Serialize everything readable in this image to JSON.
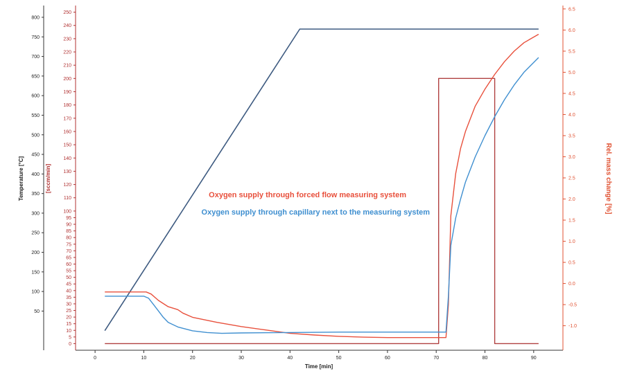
{
  "chart_data": {
    "type": "line",
    "title": "",
    "xlabel": "Time [min]",
    "ylabel_temperature": "Temperature [°C]",
    "ylabel_flow": "[sccm/min]",
    "ylabel_mass": "Rel. mass change [%]",
    "xlim": [
      -4,
      96
    ],
    "temp_lim": [
      -50,
      830
    ],
    "flow_lim": [
      -5,
      255
    ],
    "mass_lim": [
      -1.58,
      6.58
    ],
    "x_ticks": [
      0,
      10,
      20,
      30,
      40,
      50,
      60,
      70,
      80,
      90
    ],
    "temp_ticks": [
      50,
      100,
      150,
      200,
      250,
      300,
      350,
      400,
      450,
      500,
      550,
      600,
      650,
      700,
      750,
      800
    ],
    "flow_ticks": [
      0,
      5,
      10,
      15,
      20,
      25,
      30,
      35,
      40,
      45,
      50,
      55,
      60,
      65,
      70,
      75,
      80,
      85,
      90,
      95,
      100,
      110,
      120,
      130,
      140,
      150,
      160,
      170,
      180,
      190,
      200,
      210,
      220,
      230,
      240,
      250
    ],
    "mass_ticks": [
      "-1.0",
      "-0.5",
      "0.0",
      "0.5",
      "1.0",
      "1.5",
      "2.0",
      "2.5",
      "3.0",
      "3.5",
      "4.0",
      "4.5",
      "5.0",
      "5.5",
      "6.0",
      "6.5"
    ],
    "colors": {
      "temperature": "#3d5a80",
      "forced_flow": "#e8503c",
      "capillary": "#3f8fd0",
      "gas_flow": "#b04040",
      "temp_axis_text": "#222222",
      "flow_axis_text": "#b03030",
      "mass_axis_text": "#e05030"
    },
    "series": [
      {
        "key": "temperature",
        "axis": "temperature",
        "x": [
          2,
          42,
          91
        ],
        "y": [
          0,
          770,
          770
        ]
      },
      {
        "key": "gas_flow",
        "axis": "flow",
        "x": [
          2,
          70.5,
          70.5,
          82,
          82,
          91
        ],
        "y": [
          0,
          0,
          200,
          200,
          0,
          0
        ]
      },
      {
        "name": "Oxygen supply through forced flow measuring system",
        "key": "forced_flow",
        "axis": "mass",
        "x": [
          2,
          8,
          10.5,
          11.5,
          13,
          15,
          17,
          18,
          20,
          25,
          30,
          35,
          40,
          45,
          50,
          55,
          60,
          65,
          70,
          72,
          72.5,
          73,
          74,
          75,
          76,
          77,
          78,
          80,
          82,
          84,
          86,
          88,
          91
        ],
        "y": [
          -0.2,
          -0.2,
          -0.2,
          -0.25,
          -0.4,
          -0.55,
          -0.62,
          -0.7,
          -0.8,
          -0.92,
          -1.02,
          -1.1,
          -1.18,
          -1.22,
          -1.25,
          -1.27,
          -1.28,
          -1.28,
          -1.28,
          -1.28,
          -0.5,
          1.6,
          2.6,
          3.2,
          3.6,
          3.9,
          4.2,
          4.6,
          4.95,
          5.25,
          5.5,
          5.7,
          5.9
        ]
      },
      {
        "name": "Oxygen supply through capillary next to the measuring system",
        "key": "capillary",
        "axis": "mass",
        "x": [
          2,
          8,
          10,
          11,
          12,
          13,
          14,
          15,
          17,
          20,
          23,
          26,
          30,
          40,
          50,
          60,
          70,
          72,
          72.5,
          73,
          74,
          75,
          76,
          78,
          80,
          82,
          84,
          86,
          88,
          91
        ],
        "y": [
          -0.3,
          -0.3,
          -0.3,
          -0.35,
          -0.5,
          -0.65,
          -0.8,
          -0.92,
          -1.03,
          -1.12,
          -1.16,
          -1.18,
          -1.17,
          -1.16,
          -1.15,
          -1.15,
          -1.15,
          -1.15,
          -0.3,
          0.9,
          1.55,
          2.0,
          2.4,
          3.0,
          3.5,
          3.95,
          4.35,
          4.7,
          5.0,
          5.35
        ]
      }
    ]
  }
}
